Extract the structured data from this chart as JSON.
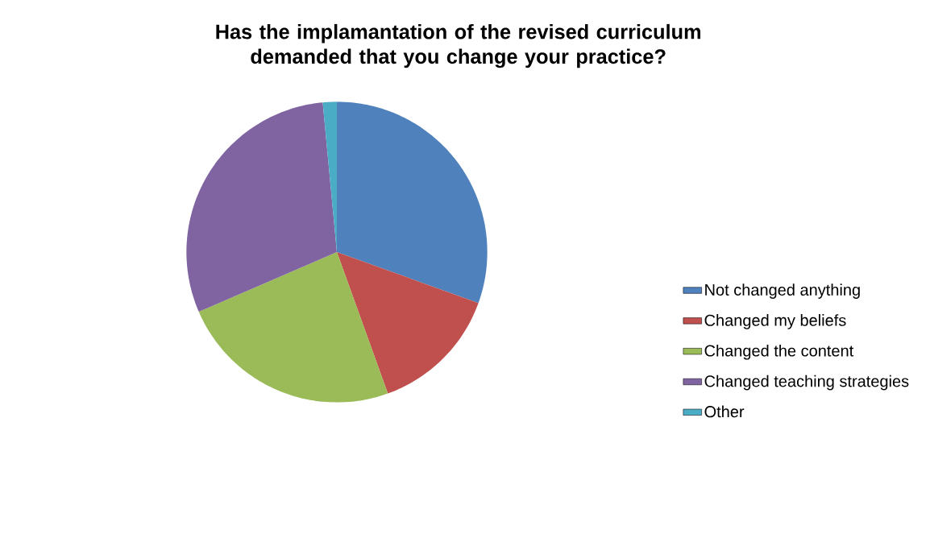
{
  "chart_data": {
    "type": "pie",
    "title": "Has the implamantation of the revised curriculum demanded that you change your practice?",
    "categories": [
      "Not changed anything",
      "Changed my beliefs",
      "Changed the content",
      "Changed teaching strategies",
      "Other"
    ],
    "values": [
      30.5,
      14,
      24,
      30,
      1.5
    ],
    "colors": [
      "#4f81bd",
      "#c0504d",
      "#9bbb59",
      "#8064a2",
      "#4bacc6"
    ],
    "legend": "right"
  }
}
